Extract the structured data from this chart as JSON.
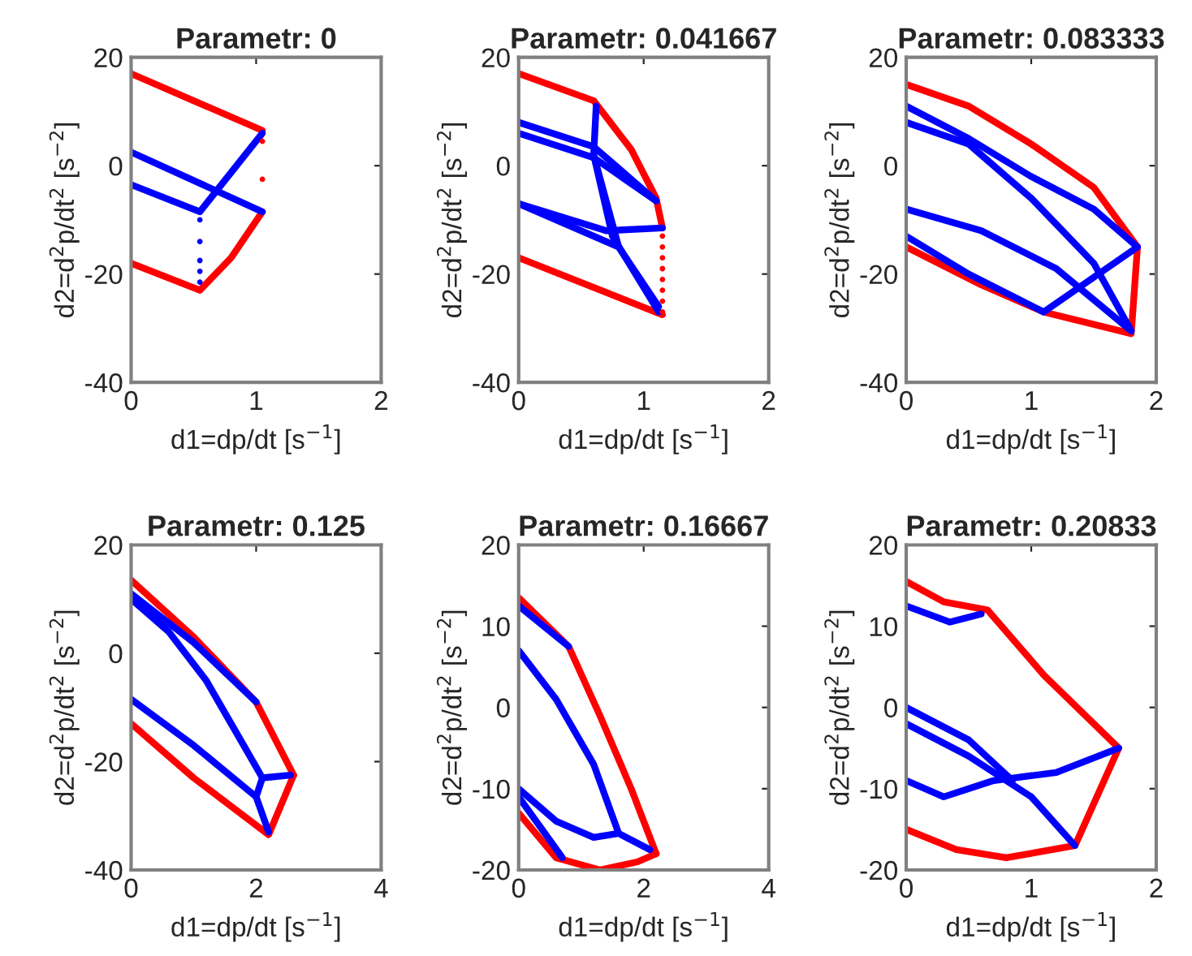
{
  "chart_data": [
    {
      "type": "line",
      "title": "Parametr: 0",
      "xlabel": "d1=dp/dt [s$^{−1}$]",
      "ylabel": "d2=d$^{2}$p/dt$^{2}$ [s$^{−2}$]",
      "xlim": [
        0,
        2
      ],
      "ylim": [
        -40,
        20
      ],
      "xticks": [
        0,
        1,
        2
      ],
      "yticks": [
        -40,
        -20,
        0,
        20
      ],
      "series": [
        {
          "color": "#ff0000",
          "x": [
            0,
            0.5,
            1.05
          ],
          "values": [
            17,
            12,
            6.5
          ]
        },
        {
          "color": "#ff0000",
          "x": [
            0,
            0.55,
            0.8,
            1.05
          ],
          "values": [
            -18,
            -23,
            -17,
            -8.5
          ]
        },
        {
          "color": "#0000ff",
          "x": [
            0,
            0.55,
            1.05
          ],
          "values": [
            -3.5,
            -8.5,
            6
          ]
        },
        {
          "color": "#0000ff",
          "x": [
            0,
            1.05
          ],
          "values": [
            2.5,
            -8.5
          ]
        },
        {
          "type": "scatter",
          "color": "#0000ff",
          "x": [
            0.55,
            0.55,
            0.55,
            0.55,
            0.55
          ],
          "values": [
            -10,
            -14,
            -17.5,
            -19.5,
            -21.5
          ]
        },
        {
          "type": "scatter",
          "color": "#ff0000",
          "x": [
            1.05,
            1.05
          ],
          "values": [
            4.5,
            -2.5
          ]
        }
      ]
    },
    {
      "type": "line",
      "title": "Parametr: 0.041667",
      "xlabel": "d1=dp/dt [s$^{−1}$]",
      "ylabel": "d2=d$^{2}$p/dt$^{2}$ [s$^{−2}$]",
      "xlim": [
        0,
        2
      ],
      "ylim": [
        -40,
        20
      ],
      "xticks": [
        0,
        1,
        2
      ],
      "yticks": [
        -40,
        -20,
        0,
        20
      ],
      "series": [
        {
          "color": "#ff0000",
          "x": [
            0,
            0.6,
            0.9,
            1.1,
            1.15
          ],
          "values": [
            17,
            12,
            3,
            -6,
            -11.5
          ]
        },
        {
          "color": "#ff0000",
          "x": [
            0,
            1.15
          ],
          "values": [
            -17,
            -27.5
          ]
        },
        {
          "type": "scatter",
          "color": "#ff0000",
          "x": [
            1.15,
            1.15,
            1.15,
            1.15,
            1.15,
            1.15,
            1.15,
            1.15
          ],
          "values": [
            -13,
            -15,
            -17,
            -19,
            -21,
            -23,
            -25,
            -27
          ]
        },
        {
          "color": "#0000ff",
          "x": [
            0,
            0.6,
            1.1
          ],
          "values": [
            8,
            3.5,
            -6.5
          ]
        },
        {
          "color": "#0000ff",
          "x": [
            0,
            0.6,
            1.1
          ],
          "values": [
            6,
            1.5,
            -6.5
          ]
        },
        {
          "color": "#0000ff",
          "x": [
            0.62,
            0.6,
            0.75,
            1.12
          ],
          "values": [
            11,
            2,
            -13,
            -27
          ]
        },
        {
          "color": "#0000ff",
          "x": [
            0,
            0.7,
            1.15
          ],
          "values": [
            -7,
            -12,
            -11.5
          ]
        },
        {
          "color": "#0000ff",
          "x": [
            0,
            0.8,
            1.12
          ],
          "values": [
            -7,
            -15,
            -26
          ]
        },
        {
          "color": "#0000ff",
          "x": [
            0.6,
            0.8
          ],
          "values": [
            2,
            -15
          ]
        }
      ]
    },
    {
      "type": "line",
      "title": "Parametr: 0.083333",
      "xlabel": "d1=dp/dt [s$^{−1}$]",
      "ylabel": "d2=d$^{2}$p/dt$^{2}$ [s$^{−2}$]",
      "xlim": [
        0,
        2
      ],
      "ylim": [
        -40,
        20
      ],
      "xticks": [
        0,
        1,
        2
      ],
      "yticks": [
        -40,
        -20,
        0,
        20
      ],
      "series": [
        {
          "color": "#ff0000",
          "x": [
            0,
            0.5,
            1,
            1.5,
            1.85
          ],
          "values": [
            15,
            11,
            4,
            -4,
            -15
          ]
        },
        {
          "color": "#ff0000",
          "x": [
            0,
            0.6,
            1.1,
            1.8,
            1.85
          ],
          "values": [
            -15,
            -22,
            -27,
            -31,
            -15
          ]
        },
        {
          "color": "#0000ff",
          "x": [
            0,
            0.5,
            1,
            1.5,
            1.85
          ],
          "values": [
            11,
            5,
            -2,
            -8,
            -15
          ]
        },
        {
          "color": "#0000ff",
          "x": [
            0,
            0.5,
            1,
            1.5,
            1.8
          ],
          "values": [
            8,
            4,
            -6,
            -18,
            -30.5
          ]
        },
        {
          "color": "#0000ff",
          "x": [
            0,
            0.6,
            1.2,
            1.8
          ],
          "values": [
            -8,
            -12,
            -19,
            -30.5
          ]
        },
        {
          "color": "#0000ff",
          "x": [
            0,
            0.5,
            1.1
          ],
          "values": [
            -13,
            -20,
            -27
          ]
        },
        {
          "color": "#0000ff",
          "x": [
            1.1,
            1.85
          ],
          "values": [
            -27,
            -15
          ]
        }
      ]
    },
    {
      "type": "line",
      "title": "Parametr: 0.125",
      "xlabel": "d1=dp/dt [s$^{−1}$]",
      "ylabel": "d2=d$^{2}$p/dt$^{2}$ [s$^{−2}$]",
      "xlim": [
        0,
        4
      ],
      "ylim": [
        -40,
        20
      ],
      "xticks": [
        0,
        2,
        4
      ],
      "yticks": [
        -40,
        -20,
        0,
        20
      ],
      "series": [
        {
          "color": "#ff0000",
          "x": [
            0,
            1,
            2,
            2.6
          ],
          "values": [
            13.5,
            3,
            -9,
            -22.5
          ]
        },
        {
          "color": "#ff0000",
          "x": [
            0,
            1,
            2.2,
            2.6
          ],
          "values": [
            -13,
            -23,
            -33.5,
            -22.5
          ]
        },
        {
          "color": "#0000ff",
          "x": [
            0,
            1,
            2
          ],
          "values": [
            11,
            2,
            -9
          ]
        },
        {
          "color": "#0000ff",
          "x": [
            0,
            0.6,
            1.2,
            1.8,
            2.1
          ],
          "values": [
            10,
            4,
            -5,
            -17,
            -23
          ]
        },
        {
          "color": "#0000ff",
          "x": [
            2.1,
            2.55
          ],
          "values": [
            -23,
            -22.5
          ]
        },
        {
          "color": "#0000ff",
          "x": [
            0,
            1,
            2,
            2.2
          ],
          "values": [
            -8.5,
            -17,
            -26.5,
            -33
          ]
        },
        {
          "color": "#0000ff",
          "x": [
            2.1,
            2.0
          ],
          "values": [
            -23,
            -26.5
          ]
        }
      ]
    },
    {
      "type": "line",
      "title": "Parametr: 0.16667",
      "xlabel": "d1=dp/dt [s$^{−1}$]",
      "ylabel": "d2=d$^{2}$p/dt$^{2}$ [s$^{−2}$]",
      "xlim": [
        0,
        4
      ],
      "ylim": [
        -20,
        20
      ],
      "xticks": [
        0,
        2,
        4
      ],
      "yticks": [
        -20,
        -10,
        0,
        10,
        20
      ],
      "series": [
        {
          "color": "#ff0000",
          "x": [
            0,
            0.8,
            1.3,
            1.8,
            2.2
          ],
          "values": [
            13.5,
            7.5,
            -1,
            -10,
            -18
          ]
        },
        {
          "color": "#ff0000",
          "x": [
            0,
            0.6,
            1.3,
            1.9,
            2.2
          ],
          "values": [
            -13,
            -18.5,
            -20,
            -19,
            -18
          ]
        },
        {
          "color": "#0000ff",
          "x": [
            0,
            0.8
          ],
          "values": [
            12.5,
            7.5
          ]
        },
        {
          "color": "#0000ff",
          "x": [
            0,
            0.6,
            1.2,
            1.6,
            2.1
          ],
          "values": [
            7,
            1,
            -7,
            -15.5,
            -17.5
          ]
        },
        {
          "color": "#0000ff",
          "x": [
            0,
            0.6,
            1.2,
            1.6
          ],
          "values": [
            -10,
            -14,
            -16,
            -15.5
          ]
        },
        {
          "color": "#0000ff",
          "x": [
            0,
            0.7
          ],
          "values": [
            -11,
            -18.5
          ]
        }
      ]
    },
    {
      "type": "line",
      "title": "Parametr: 0.20833",
      "xlabel": "d1=dp/dt [s$^{−1}$]",
      "ylabel": "d2=d$^{2}$p/dt$^{2}$ [s$^{−2}$]",
      "xlim": [
        0,
        2
      ],
      "ylim": [
        -20,
        20
      ],
      "xticks": [
        0,
        1,
        2
      ],
      "yticks": [
        -20,
        -10,
        0,
        10,
        20
      ],
      "series": [
        {
          "color": "#ff0000",
          "x": [
            0,
            0.3,
            0.65,
            1.1,
            1.7
          ],
          "values": [
            15.5,
            13,
            12,
            4,
            -5
          ]
        },
        {
          "color": "#ff0000",
          "x": [
            0,
            0.4,
            0.8,
            1.35,
            1.7
          ],
          "values": [
            -15,
            -17.5,
            -18.5,
            -17,
            -5
          ]
        },
        {
          "color": "#0000ff",
          "x": [
            0,
            0.35,
            0.6
          ],
          "values": [
            12.5,
            10.5,
            11.5
          ]
        },
        {
          "color": "#0000ff",
          "x": [
            0,
            0.5,
            1,
            1.35
          ],
          "values": [
            -2,
            -6,
            -11,
            -17
          ]
        },
        {
          "color": "#0000ff",
          "x": [
            0,
            0.5,
            0.85
          ],
          "values": [
            0,
            -4,
            -9
          ]
        },
        {
          "color": "#0000ff",
          "x": [
            0,
            0.3,
            0.7,
            1.2,
            1.7
          ],
          "values": [
            -9,
            -11,
            -9,
            -8,
            -5
          ]
        }
      ]
    }
  ]
}
